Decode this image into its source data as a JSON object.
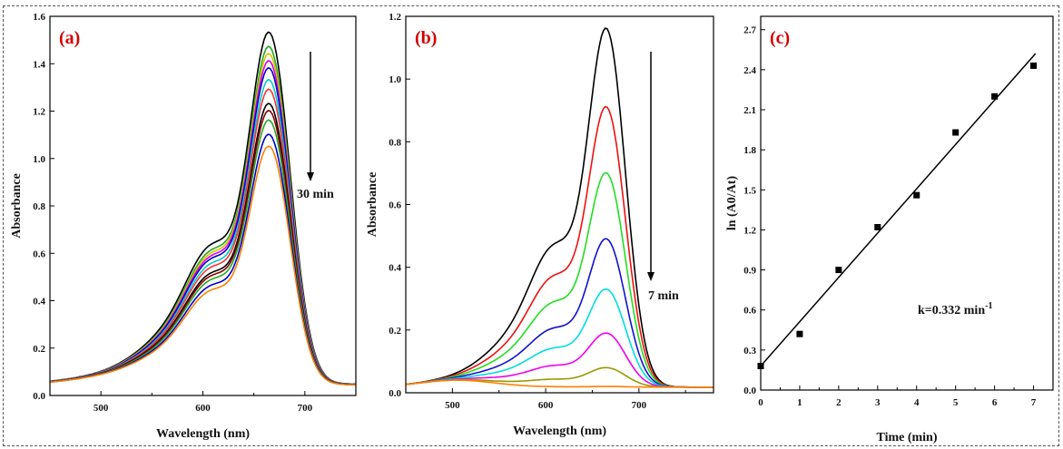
{
  "chart_data": [
    {
      "type": "line",
      "panel_label": "(a)",
      "xlabel": "Wavelength (nm)",
      "ylabel": "Absorbance",
      "xlim": [
        450,
        750
      ],
      "ylim": [
        0,
        1.6
      ],
      "xticks": [
        500,
        600,
        700
      ],
      "yticks": [
        0.0,
        0.2,
        0.4,
        0.6,
        0.8,
        1.0,
        1.2,
        1.4,
        1.6
      ],
      "annotation": "30 min",
      "series": [
        {
          "color": "#000000",
          "peak": 1.53
        },
        {
          "color": "#22aa22",
          "peak": 1.47
        },
        {
          "color": "#d4c400",
          "peak": 1.44
        },
        {
          "color": "#dd00dd",
          "peak": 1.41
        },
        {
          "color": "#0000cc",
          "peak": 1.38
        },
        {
          "color": "#00cccc",
          "peak": 1.33
        },
        {
          "color": "#ff3333",
          "peak": 1.29
        },
        {
          "color": "#000000",
          "peak": 1.23
        },
        {
          "color": "#8b0000",
          "peak": 1.2
        },
        {
          "color": "#22aa22",
          "peak": 1.16
        },
        {
          "color": "#0000cc",
          "peak": 1.1
        },
        {
          "color": "#ff7f00",
          "peak": 1.05
        }
      ]
    },
    {
      "type": "line",
      "panel_label": "(b)",
      "xlabel": "Wavelength (nm)",
      "ylabel": "Absorbance",
      "xlim": [
        450,
        780
      ],
      "ylim": [
        0,
        1.2
      ],
      "xticks": [
        500,
        600,
        700
      ],
      "yticks": [
        0.0,
        0.2,
        0.4,
        0.6,
        0.8,
        1.0,
        1.2
      ],
      "annotation": "7 min",
      "series": [
        {
          "color": "#000000",
          "peak": 1.16
        },
        {
          "color": "#ee1111",
          "peak": 0.91
        },
        {
          "color": "#22dd22",
          "peak": 0.7
        },
        {
          "color": "#1111cc",
          "peak": 0.49
        },
        {
          "color": "#00dddd",
          "peak": 0.33
        },
        {
          "color": "#ee00ee",
          "peak": 0.19
        },
        {
          "color": "#999900",
          "peak": 0.08
        },
        {
          "color": "#ff7f00",
          "peak": 0.02
        }
      ]
    },
    {
      "type": "scatter",
      "panel_label": "(c)",
      "xlabel": "Time (min)",
      "ylabel": "ln (A0/At)",
      "xlim": [
        0,
        7.5
      ],
      "ylim": [
        0,
        2.8
      ],
      "xticks": [
        0,
        1,
        2,
        3,
        4,
        5,
        6,
        7
      ],
      "yticks": [
        0.0,
        0.3,
        0.6,
        0.9,
        1.2,
        1.5,
        1.8,
        2.1,
        2.4,
        2.7
      ],
      "x": [
        0,
        1,
        2,
        3,
        4,
        5,
        6,
        7
      ],
      "y": [
        0.18,
        0.42,
        0.9,
        1.22,
        1.46,
        1.93,
        2.2,
        2.43
      ],
      "fit": {
        "slope": 0.332,
        "intercept": 0.18,
        "x_range": [
          0,
          7.05
        ]
      },
      "annotation": "k=0.332 min",
      "annotation_sup": "-1"
    }
  ]
}
